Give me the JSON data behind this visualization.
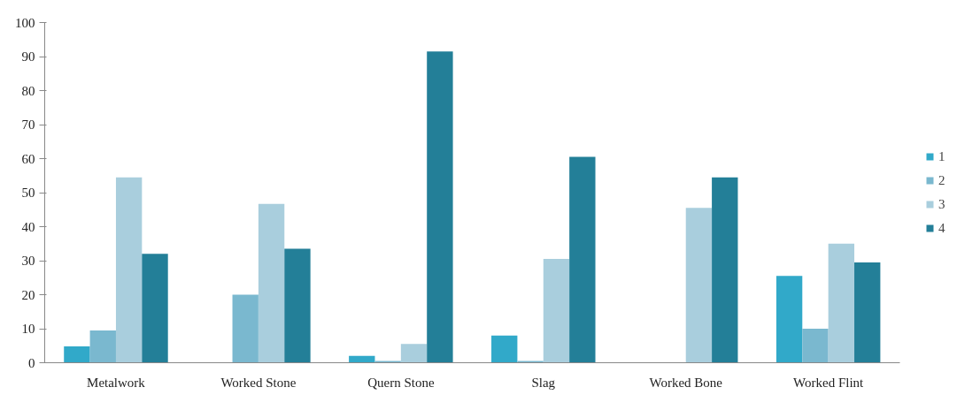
{
  "chart_data": {
    "type": "bar",
    "categories": [
      "Metalwork",
      "Worked Stone",
      "Quern Stone",
      "Slag",
      "Worked Bone",
      "Worked Flint"
    ],
    "series": [
      {
        "name": "1",
        "color": "#31a9c9",
        "values": [
          4.8,
          0,
          2,
          8,
          0,
          25.5
        ]
      },
      {
        "name": "2",
        "color": "#7ab8cf",
        "values": [
          9.5,
          20,
          0.5,
          0.5,
          0,
          10
        ]
      },
      {
        "name": "3",
        "color": "#a9cedd",
        "values": [
          54.5,
          46.7,
          5.5,
          30.5,
          45.5,
          35
        ]
      },
      {
        "name": "4",
        "color": "#237f98",
        "values": [
          32,
          33.5,
          91.5,
          60.5,
          54.5,
          29.5
        ]
      }
    ],
    "ylim": [
      0,
      100
    ],
    "yticks": [
      0,
      10,
      20,
      30,
      40,
      50,
      60,
      70,
      80,
      90,
      100
    ],
    "grid": false,
    "legend": "right"
  }
}
